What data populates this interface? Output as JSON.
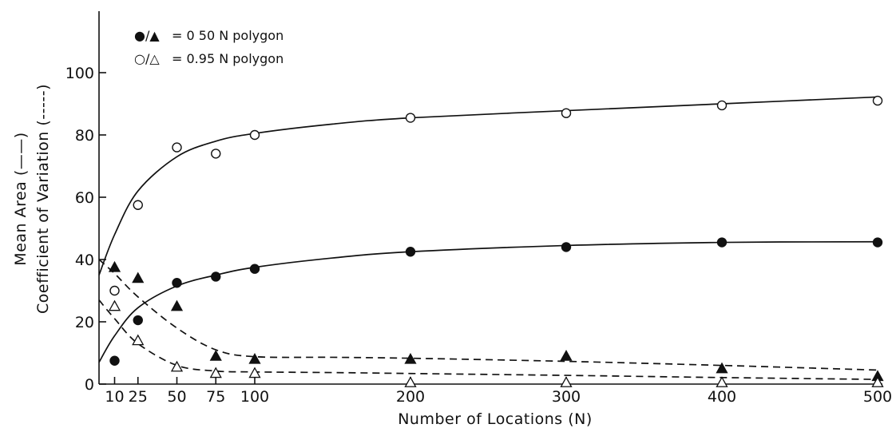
{
  "chart_data": {
    "type": "scatter",
    "xlabel": "Number of Locations (N)",
    "ylabel_lines": [
      "Mean Area (——)",
      "Coefficient of Variation (-----)"
    ],
    "xlim": [
      0,
      500
    ],
    "ylim": [
      0,
      100
    ],
    "x_ticks": [
      10,
      25,
      50,
      75,
      100,
      200,
      300,
      400,
      500
    ],
    "y_ticks": [
      0,
      20,
      40,
      60,
      80,
      100
    ],
    "legend": [
      {
        "symbols": "●/▲",
        "text": "= 0 50 N  polygon"
      },
      {
        "symbols": "○/△",
        "text": "= 0.95 N  polygon"
      }
    ],
    "legend_position": "top-left",
    "series": [
      {
        "name": "0.50 N polygon",
        "measure": "mean area",
        "marker": "filled-circle",
        "line": "solid",
        "x": [
          10,
          25,
          50,
          75,
          100,
          200,
          300,
          400,
          500
        ],
        "y": [
          7.5,
          20.5,
          32.5,
          34.5,
          37,
          42.5,
          44,
          45.5,
          45.5
        ],
        "fit_curve": [
          [
            0,
            7
          ],
          [
            10,
            15.5
          ],
          [
            25,
            24.5
          ],
          [
            50,
            31.5
          ],
          [
            75,
            35
          ],
          [
            100,
            37.5
          ],
          [
            150,
            40.5
          ],
          [
            200,
            42.5
          ],
          [
            300,
            44.5
          ],
          [
            400,
            45.5
          ],
          [
            500,
            45.7
          ]
        ]
      },
      {
        "name": "0.95 N polygon",
        "measure": "mean area",
        "marker": "open-circle",
        "line": "solid",
        "x": [
          10,
          25,
          50,
          75,
          100,
          200,
          300,
          400,
          500
        ],
        "y": [
          30,
          57.5,
          76,
          74,
          80,
          85.5,
          87,
          89.5,
          91
        ],
        "fit_curve": [
          [
            0,
            35
          ],
          [
            10,
            48
          ],
          [
            25,
            62
          ],
          [
            50,
            73
          ],
          [
            75,
            78
          ],
          [
            100,
            80.5
          ],
          [
            150,
            83.5
          ],
          [
            200,
            85.5
          ],
          [
            300,
            87.8
          ],
          [
            400,
            90
          ],
          [
            500,
            92.2
          ]
        ]
      },
      {
        "name": "0.50 N polygon",
        "measure": "coefficient of variation",
        "marker": "filled-triangle",
        "line": "dashed",
        "x": [
          10,
          25,
          50,
          75,
          100,
          200,
          300,
          400,
          500
        ],
        "y": [
          37.5,
          34,
          25,
          9,
          8,
          8,
          9,
          5,
          2.5
        ],
        "fit_curve": [
          [
            0,
            40
          ],
          [
            10,
            35.5
          ],
          [
            25,
            28
          ],
          [
            50,
            18
          ],
          [
            75,
            11
          ],
          [
            100,
            8.8
          ],
          [
            150,
            8.6
          ],
          [
            200,
            8.3
          ],
          [
            300,
            7.3
          ],
          [
            400,
            6
          ],
          [
            500,
            4.5
          ]
        ]
      },
      {
        "name": "0.95 N polygon",
        "measure": "coefficient of variation",
        "marker": "open-triangle",
        "line": "dashed",
        "x": [
          10,
          25,
          50,
          75,
          100,
          200,
          300,
          400,
          500
        ],
        "y": [
          25,
          14,
          5.5,
          3.5,
          3.5,
          0.5,
          0.5,
          0.5,
          0.5
        ],
        "fit_curve": [
          [
            0,
            27
          ],
          [
            10,
            21
          ],
          [
            25,
            13
          ],
          [
            50,
            6
          ],
          [
            75,
            4.2
          ],
          [
            100,
            3.9
          ],
          [
            150,
            3.7
          ],
          [
            200,
            3.4
          ],
          [
            300,
            2.8
          ],
          [
            400,
            2.1
          ],
          [
            500,
            1.5
          ]
        ]
      }
    ]
  }
}
